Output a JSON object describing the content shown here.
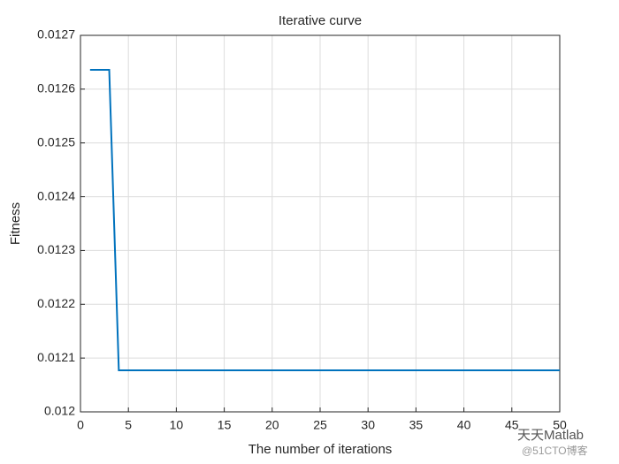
{
  "chart_data": {
    "type": "line",
    "title": "Iterative curve",
    "x_label": "The number of iterations",
    "y_label": "Fitness",
    "x": [
      1,
      2,
      3,
      4,
      5,
      6,
      7,
      8,
      9,
      10,
      11,
      12,
      13,
      14,
      15,
      16,
      17,
      18,
      19,
      20,
      21,
      22,
      23,
      24,
      25,
      26,
      27,
      28,
      29,
      30,
      31,
      32,
      33,
      34,
      35,
      36,
      37,
      38,
      39,
      40,
      41,
      42,
      43,
      44,
      45,
      46,
      47,
      48,
      49,
      50
    ],
    "values": [
      0.012636,
      0.012636,
      0.012636,
      0.0120772,
      0.0120772,
      0.0120772,
      0.0120772,
      0.0120772,
      0.0120772,
      0.0120772,
      0.0120772,
      0.0120772,
      0.0120772,
      0.0120772,
      0.0120772,
      0.0120772,
      0.0120772,
      0.0120772,
      0.0120772,
      0.0120772,
      0.0120772,
      0.0120772,
      0.0120772,
      0.0120772,
      0.0120772,
      0.0120772,
      0.0120772,
      0.0120772,
      0.0120772,
      0.0120772,
      0.0120772,
      0.0120772,
      0.0120772,
      0.0120772,
      0.0120772,
      0.0120772,
      0.0120772,
      0.0120772,
      0.0120772,
      0.0120772,
      0.0120772,
      0.0120772,
      0.0120772,
      0.0120772,
      0.0120772,
      0.0120772,
      0.0120772,
      0.0120772,
      0.0120772,
      0.0120772
    ],
    "color": "#0072BD",
    "xlim": [
      0,
      50
    ],
    "xticks": [
      0,
      5,
      10,
      15,
      20,
      25,
      30,
      35,
      40,
      45,
      50
    ],
    "ylim": [
      0.012,
      0.0127
    ],
    "yticks": [
      0.012,
      0.0121,
      0.0122,
      0.0123,
      0.0124,
      0.0125,
      0.0126,
      0.0127
    ],
    "grid": true,
    "annotations": [
      "天天Matlab",
      "@51CTO博客"
    ]
  }
}
